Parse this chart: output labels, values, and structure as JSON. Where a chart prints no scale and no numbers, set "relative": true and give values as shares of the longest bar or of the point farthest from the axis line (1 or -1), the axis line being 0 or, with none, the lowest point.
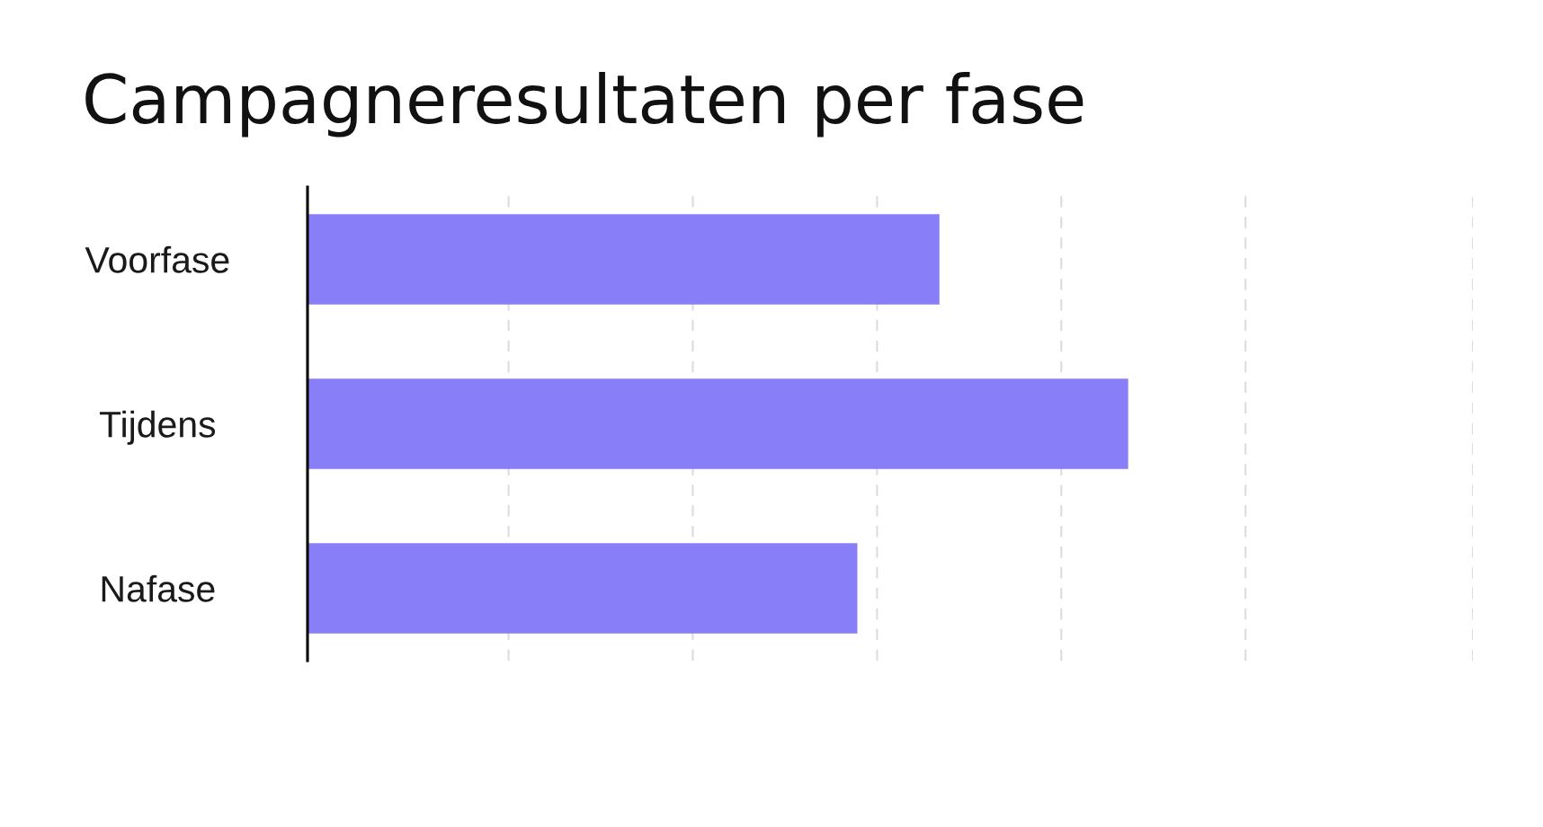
{
  "chart_data": {
    "type": "bar",
    "title": "Campagneresultaten per fase",
    "orientation": "horizontal",
    "categories": [
      "Voorfase",
      "Tijdens",
      "Nafase"
    ],
    "values": [
      0.77,
      1,
      0.67
    ],
    "color": "#887ef8",
    "relative": true,
    "grid": "x"
  }
}
